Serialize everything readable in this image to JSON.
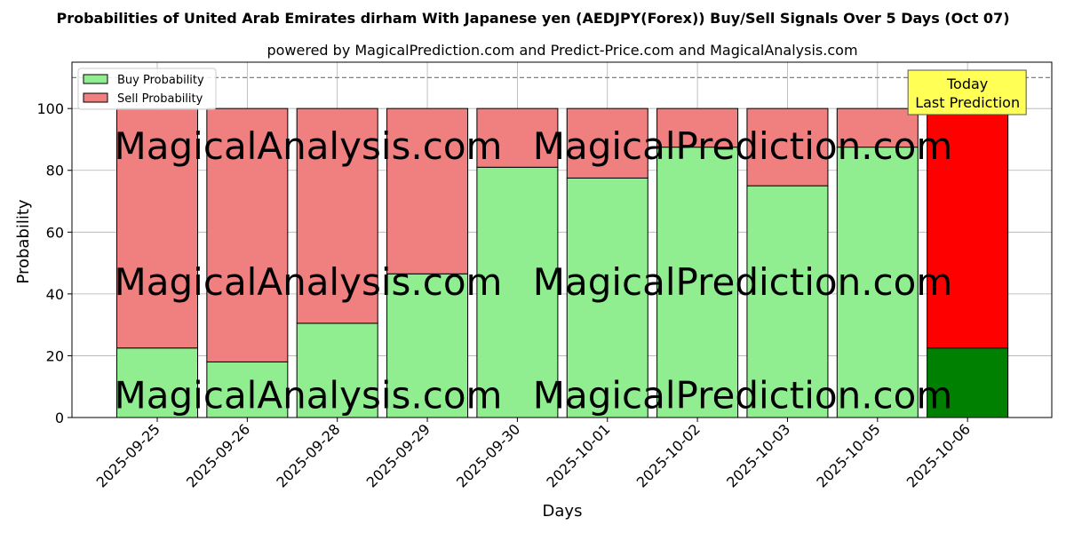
{
  "chart_data": {
    "type": "bar",
    "stacked": true,
    "title": "Probabilities of United Arab Emirates dirham With Japanese yen (AEDJPY(Forex)) Buy/Sell Signals Over 5 Days (Oct 07)",
    "subtitle": "powered by MagicalPrediction.com and Predict-Price.com and MagicalAnalysis.com",
    "xlabel": "Days",
    "ylabel": "Probability",
    "ylim": [
      0,
      115
    ],
    "yticks": [
      0,
      20,
      40,
      60,
      80,
      100
    ],
    "grid": true,
    "legend_position": "top-left",
    "threshold_line": 110,
    "categories": [
      "2025-09-25",
      "2025-09-26",
      "2025-09-28",
      "2025-09-29",
      "2025-09-30",
      "2025-10-01",
      "2025-10-02",
      "2025-10-03",
      "2025-10-05",
      "2025-10-06"
    ],
    "series": [
      {
        "name": "Buy Probability",
        "color": "#90ee90",
        "values": [
          22.5,
          18,
          30.5,
          46.5,
          81,
          77.5,
          87.5,
          75,
          87.5,
          22.5
        ]
      },
      {
        "name": "Sell Probability",
        "color": "#f08080",
        "values": [
          77.5,
          82,
          69.5,
          53.5,
          19,
          22.5,
          12.5,
          25,
          12.5,
          77.5
        ]
      }
    ],
    "highlight": {
      "index": 9,
      "buy_color": "#008000",
      "sell_color": "#ff0000"
    },
    "annotation": {
      "lines": [
        "Today",
        "Last Prediction"
      ],
      "background": "#ffff55"
    },
    "watermarks": [
      "MagicalAnalysis.com",
      "MagicalPrediction.com"
    ]
  }
}
